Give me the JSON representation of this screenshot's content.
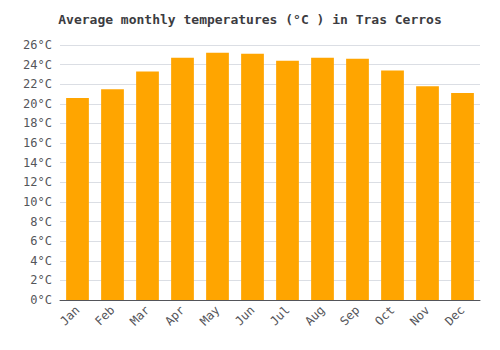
{
  "chart_data": {
    "type": "bar",
    "title": "Average monthly temperatures (°C ) in Tras Cerros",
    "categories": [
      "Jan",
      "Feb",
      "Mar",
      "Apr",
      "May",
      "Jun",
      "Jul",
      "Aug",
      "Sep",
      "Oct",
      "Nov",
      "Dec"
    ],
    "values": [
      20.6,
      21.5,
      23.3,
      24.7,
      25.2,
      25.1,
      24.4,
      24.7,
      24.6,
      23.4,
      21.8,
      21.1
    ],
    "color": "#FFA500",
    "ylim": [
      0,
      26
    ],
    "yticks": [
      {
        "value": 0,
        "label": "0°C"
      },
      {
        "value": 2,
        "label": "2°C"
      },
      {
        "value": 4,
        "label": "4°C"
      },
      {
        "value": 6,
        "label": "6°C"
      },
      {
        "value": 8,
        "label": "8°C"
      },
      {
        "value": 10,
        "label": "10°C"
      },
      {
        "value": 12,
        "label": "12°C"
      },
      {
        "value": 14,
        "label": "14°C"
      },
      {
        "value": 16,
        "label": "16°C"
      },
      {
        "value": 18,
        "label": "18°C"
      },
      {
        "value": 20,
        "label": "20°C"
      },
      {
        "value": 22,
        "label": "22°C"
      },
      {
        "value": 24,
        "label": "24°C"
      },
      {
        "value": 26,
        "label": "26°C"
      }
    ],
    "grid": true
  }
}
